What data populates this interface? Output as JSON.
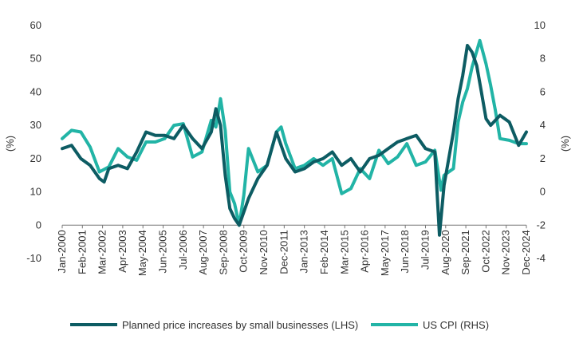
{
  "chart_data": {
    "type": "line",
    "title": "",
    "left_axis": {
      "unit_label": "(%)",
      "ylim": [
        -10,
        60
      ],
      "ticks": [
        "60",
        "50",
        "40",
        "30",
        "20",
        "10",
        "0",
        "-10"
      ]
    },
    "right_axis": {
      "unit_label": "(%)",
      "ylim": [
        -4,
        10
      ],
      "ticks": [
        "10",
        "8",
        "6",
        "4",
        "2",
        "0",
        "-2",
        "-4"
      ]
    },
    "x_ticks": [
      "Jan-2000",
      "Feb-2001",
      "Mar-2002",
      "Apr-2003",
      "May-2004",
      "Jun-2005",
      "Jul-2006",
      "Aug-2007",
      "Sep-2008",
      "Oct-2009",
      "Nov-2010",
      "Dec-2011",
      "Jan-2013",
      "Feb-2014",
      "Mar-2015",
      "Apr-2016",
      "May-2017",
      "Jun-2018",
      "Jul-2019",
      "Aug-2020",
      "Sep-2021",
      "Oct-2022",
      "Nov-2023",
      "Dec-2024"
    ],
    "grid": false,
    "legend_position": "bottom",
    "series": [
      {
        "name": "Planned price increases by small businesses (LHS)",
        "axis": "left",
        "color": "#0d5c63",
        "x": [
          "2000-01",
          "2000-07",
          "2001-01",
          "2001-07",
          "2002-01",
          "2002-04",
          "2002-07",
          "2003-01",
          "2003-07",
          "2004-01",
          "2004-07",
          "2005-01",
          "2005-07",
          "2006-01",
          "2006-07",
          "2007-01",
          "2007-07",
          "2008-01",
          "2008-04",
          "2008-07",
          "2008-10",
          "2009-01",
          "2009-04",
          "2009-07",
          "2010-01",
          "2010-07",
          "2011-01",
          "2011-07",
          "2012-01",
          "2012-07",
          "2013-01",
          "2013-07",
          "2014-01",
          "2014-07",
          "2015-01",
          "2015-07",
          "2016-01",
          "2016-07",
          "2017-01",
          "2017-07",
          "2018-01",
          "2018-07",
          "2019-01",
          "2019-07",
          "2020-01",
          "2020-04",
          "2020-07",
          "2021-01",
          "2021-04",
          "2021-07",
          "2021-10",
          "2022-01",
          "2022-04",
          "2022-07",
          "2022-10",
          "2023-01",
          "2023-07",
          "2024-01",
          "2024-07",
          "2024-12"
        ],
        "y": [
          23,
          24,
          20,
          18,
          14,
          13,
          17,
          18,
          17,
          22,
          28,
          27,
          27,
          26,
          30,
          26,
          23,
          28,
          35,
          30,
          15,
          5,
          2,
          0,
          8,
          14,
          18,
          28,
          20,
          16,
          17,
          19,
          20,
          22,
          18,
          20,
          16,
          20,
          21,
          23,
          25,
          26,
          27,
          23,
          22,
          -3,
          12,
          28,
          38,
          45,
          54,
          52,
          48,
          40,
          32,
          30,
          33,
          31,
          24,
          28
        ]
      },
      {
        "name": "US CPI (RHS)",
        "axis": "right",
        "color": "#22b4a6",
        "x": [
          "2000-01",
          "2000-07",
          "2001-01",
          "2001-07",
          "2002-01",
          "2002-07",
          "2003-01",
          "2003-07",
          "2004-01",
          "2004-07",
          "2005-01",
          "2005-07",
          "2006-01",
          "2006-07",
          "2007-01",
          "2007-07",
          "2008-01",
          "2008-04",
          "2008-07",
          "2008-10",
          "2009-01",
          "2009-04",
          "2009-07",
          "2009-10",
          "2010-01",
          "2010-07",
          "2011-01",
          "2011-07",
          "2011-10",
          "2012-01",
          "2012-07",
          "2013-01",
          "2013-07",
          "2014-01",
          "2014-07",
          "2015-01",
          "2015-07",
          "2016-01",
          "2016-07",
          "2017-01",
          "2017-07",
          "2018-01",
          "2018-07",
          "2019-01",
          "2019-07",
          "2020-01",
          "2020-05",
          "2020-07",
          "2021-01",
          "2021-04",
          "2021-07",
          "2021-10",
          "2022-01",
          "2022-06",
          "2022-10",
          "2023-01",
          "2023-04",
          "2023-07",
          "2024-01",
          "2024-07",
          "2024-12"
        ],
        "y": [
          3.2,
          3.7,
          3.6,
          2.7,
          1.2,
          1.5,
          2.6,
          2.1,
          1.9,
          3.0,
          3.0,
          3.2,
          4.0,
          4.1,
          2.1,
          2.4,
          4.3,
          3.9,
          5.6,
          3.7,
          0.0,
          -0.7,
          -2.0,
          -0.2,
          2.6,
          1.2,
          1.6,
          3.6,
          3.9,
          2.9,
          1.4,
          1.6,
          2.0,
          1.6,
          2.0,
          -0.1,
          0.2,
          1.4,
          0.8,
          2.5,
          1.7,
          2.1,
          2.9,
          1.6,
          1.8,
          2.5,
          0.1,
          1.0,
          1.4,
          4.2,
          5.4,
          6.2,
          7.5,
          9.1,
          7.7,
          6.4,
          4.9,
          3.2,
          3.1,
          2.9,
          2.9
        ]
      }
    ]
  }
}
